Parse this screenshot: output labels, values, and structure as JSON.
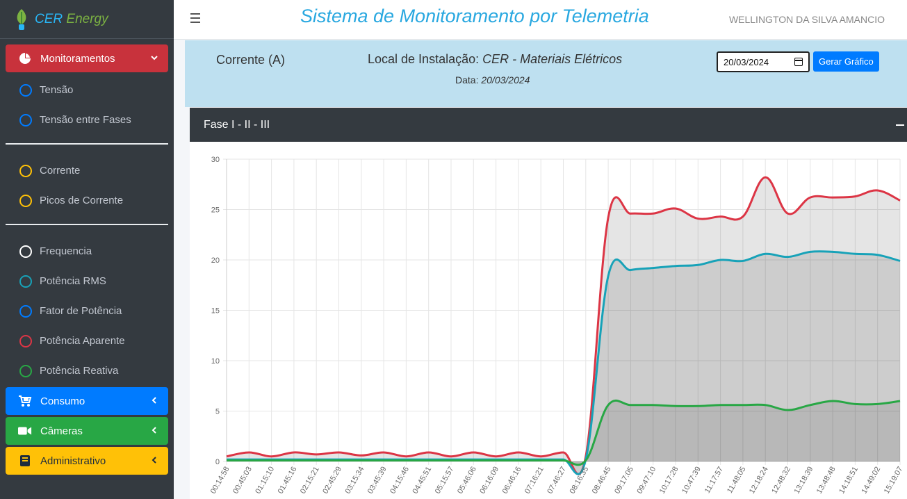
{
  "brand": {
    "name_1": "CER",
    "name_2": "Energy"
  },
  "header": {
    "title": "Sistema de Monitoramento por Telemetria",
    "user": "WELLINGTON DA SILVA AMANCIO"
  },
  "sidebar": {
    "monitoramentos": "Monitoramentos",
    "group1": [
      {
        "label": "Tensão",
        "color": "#007bff"
      },
      {
        "label": "Tensão entre Fases",
        "color": "#007bff"
      }
    ],
    "group2": [
      {
        "label": "Corrente",
        "color": "#ffc107"
      },
      {
        "label": "Picos de Corrente",
        "color": "#ffc107"
      }
    ],
    "group3": [
      {
        "label": "Frequencia",
        "color": "#ffffff"
      },
      {
        "label": "Potência RMS",
        "color": "#17a2b8"
      },
      {
        "label": "Fator de Potência",
        "color": "#007bff"
      },
      {
        "label": "Potência Aparente",
        "color": "#dc3545"
      },
      {
        "label": "Potência Reativa",
        "color": "#28a745"
      }
    ],
    "consumo": "Consumo",
    "cameras": "Câmeras",
    "administrativo": "Administrativo"
  },
  "info": {
    "quantity": "Corrente (A)",
    "local_label": "Local de Instalação:",
    "local_value": "CER - Materiais Elétricos",
    "data_label": "Data:",
    "data_value": "20/03/2024",
    "date_input": "20/03/2024",
    "button": "Gerar Gráfico"
  },
  "card": {
    "title": "Fase I - II - III"
  },
  "chart_data": {
    "type": "area",
    "ylim": [
      0,
      30
    ],
    "yticks": [
      0,
      5,
      10,
      15,
      20,
      25,
      30
    ],
    "grid": true,
    "categories": [
      "00:14:58",
      "00:45:03",
      "01:15:10",
      "01:45:16",
      "02:15:21",
      "02:45:29",
      "03:15:34",
      "03:45:39",
      "04:15:46",
      "04:45:51",
      "05:15:57",
      "05:46:06",
      "06:16:09",
      "06:46:16",
      "07:16:21",
      "07:46:27",
      "08:16:35",
      "08:46:45",
      "09:17:05",
      "09:47:10",
      "10:17:28",
      "10:47:39",
      "11:17:57",
      "11:48:05",
      "12:18:24",
      "12:48:32",
      "13:18:39",
      "13:48:48",
      "14:18:51",
      "14:49:02",
      "15:19:07"
    ],
    "series": [
      {
        "color": "#dc3545",
        "values": [
          0.5,
          0.9,
          0.5,
          0.9,
          0.7,
          0.9,
          0.6,
          0.9,
          0.5,
          0.9,
          0.5,
          0.9,
          0.5,
          0.9,
          0.5,
          0.9,
          0.5,
          24.2,
          24.6,
          24.6,
          25.1,
          24.1,
          24.3,
          24.3,
          28.2,
          24.6,
          26.2,
          26.2,
          26.3,
          26.9,
          25.9
        ]
      },
      {
        "color": "#17a2b8",
        "values": [
          0.2,
          0.2,
          0.2,
          0.2,
          0.2,
          0.2,
          0.2,
          0.2,
          0.2,
          0.2,
          0.2,
          0.2,
          0.2,
          0.2,
          0.2,
          0.2,
          0.2,
          18.4,
          19.0,
          19.2,
          19.4,
          19.5,
          20.0,
          19.9,
          20.6,
          20.3,
          20.8,
          20.8,
          20.6,
          20.5,
          19.9
        ]
      },
      {
        "color": "#28a745",
        "values": [
          0.1,
          0.1,
          0.1,
          0.1,
          0.1,
          0.1,
          0.1,
          0.1,
          0.1,
          0.1,
          0.1,
          0.1,
          0.1,
          0.1,
          0.1,
          0.1,
          0.1,
          5.6,
          5.6,
          5.6,
          5.5,
          5.5,
          5.6,
          5.6,
          5.6,
          5.1,
          5.6,
          6.0,
          5.7,
          5.7,
          6.0
        ]
      }
    ]
  }
}
